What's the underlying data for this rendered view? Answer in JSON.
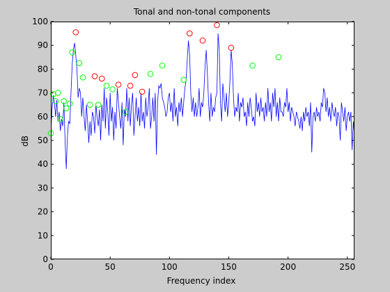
{
  "chart_data": {
    "type": "line",
    "title": "Tonal and non-tonal components",
    "xlabel": "Frequency index",
    "ylabel": "dB",
    "xlim": [
      0,
      256
    ],
    "ylim": [
      0,
      100
    ],
    "xticks": [
      0,
      50,
      100,
      150,
      200,
      250
    ],
    "yticks": [
      0,
      10,
      20,
      30,
      40,
      50,
      60,
      70,
      80,
      90,
      100
    ],
    "xtick_labels": [
      "0",
      "50",
      "100",
      "150",
      "200",
      "250"
    ],
    "ytick_labels": [
      "0",
      "10",
      "20",
      "30",
      "40",
      "50",
      "60",
      "70",
      "80",
      "90",
      "100"
    ],
    "grid": false,
    "colors": {
      "figure_background": "#cccccc",
      "axes_background": "#ffffff",
      "spectrum_line": "#0000ff",
      "tonal_marker": "#ff0000",
      "nontonal_marker": "#00ff00"
    },
    "series": [
      {
        "kind": "line",
        "x": [
          0,
          1,
          2,
          3,
          4,
          5,
          6,
          7,
          8,
          9,
          10,
          11,
          12,
          13,
          14,
          15,
          16,
          17,
          18,
          19,
          20,
          21,
          22,
          23,
          24,
          25,
          26,
          27,
          28,
          29,
          30,
          31,
          32,
          33,
          34,
          35,
          36,
          37,
          38,
          39,
          40,
          41,
          42,
          43,
          44,
          45,
          46,
          47,
          48,
          49,
          50,
          51,
          52,
          53,
          54,
          55,
          56,
          57,
          58,
          59,
          60,
          61,
          62,
          63,
          64,
          65,
          66,
          67,
          68,
          69,
          70,
          71,
          72,
          73,
          74,
          75,
          76,
          77,
          78,
          79,
          80,
          81,
          82,
          83,
          84,
          85,
          86,
          87,
          88,
          89,
          90,
          91,
          92,
          93,
          94,
          95,
          96,
          97,
          98,
          99,
          100,
          101,
          102,
          103,
          104,
          105,
          106,
          107,
          108,
          109,
          110,
          111,
          112,
          113,
          114,
          115,
          116,
          117,
          118,
          119,
          120,
          121,
          122,
          123,
          124,
          125,
          126,
          127,
          128,
          129,
          130,
          131,
          132,
          133,
          134,
          135,
          136,
          137,
          138,
          139,
          140,
          141,
          142,
          143,
          144,
          145,
          146,
          147,
          148,
          149,
          150,
          151,
          152,
          153,
          154,
          155,
          156,
          157,
          158,
          159,
          160,
          161,
          162,
          163,
          164,
          165,
          166,
          167,
          168,
          169,
          170,
          171,
          172,
          173,
          174,
          175,
          176,
          177,
          178,
          179,
          180,
          181,
          182,
          183,
          184,
          185,
          186,
          187,
          188,
          189,
          190,
          191,
          192,
          193,
          194,
          195,
          196,
          197,
          198,
          199,
          200,
          201,
          202,
          203,
          204,
          205,
          206,
          207,
          208,
          209,
          210,
          211,
          212,
          213,
          214,
          215,
          216,
          217,
          218,
          219,
          220,
          221,
          222,
          223,
          224,
          225,
          226,
          227,
          228,
          229,
          230,
          231,
          232,
          233,
          234,
          235,
          236,
          237,
          238,
          239,
          240,
          241,
          242,
          243,
          244,
          245,
          246,
          247,
          248,
          249,
          250,
          251,
          252,
          253,
          254,
          255,
          256
        ],
        "y": [
          53,
          63,
          69,
          66,
          60,
          67,
          58,
          62,
          54,
          59,
          56,
          66,
          50,
          38,
          52,
          58,
          57,
          70,
          82,
          88,
          91,
          86,
          80,
          68,
          72,
          70,
          60,
          68,
          60,
          54,
          65,
          58,
          49,
          58,
          52,
          62,
          60,
          53,
          65,
          60,
          56,
          63,
          50,
          65,
          58,
          72,
          55,
          68,
          62,
          52,
          70,
          58,
          64,
          50,
          62,
          55,
          72,
          66,
          60,
          55,
          66,
          48,
          63,
          60,
          72,
          58,
          68,
          56,
          65,
          70,
          52,
          60,
          68,
          58,
          64,
          56,
          70,
          58,
          62,
          55,
          68,
          60,
          64,
          72,
          55,
          60,
          68,
          58,
          70,
          44,
          66,
          73,
          72,
          74,
          68,
          66,
          64,
          60,
          62,
          68,
          70,
          62,
          66,
          58,
          72,
          60,
          64,
          56,
          66,
          62,
          68,
          60,
          66,
          72,
          75,
          84,
          92,
          86,
          70,
          62,
          68,
          60,
          66,
          60,
          64,
          72,
          60,
          66,
          64,
          70,
          81,
          88,
          78,
          66,
          58,
          70,
          60,
          64,
          62,
          68,
          70,
          95,
          88,
          66,
          58,
          74,
          68,
          62,
          70,
          60,
          66,
          75,
          88,
          82,
          68,
          60,
          64,
          62,
          70,
          58,
          66,
          64,
          68,
          60,
          62,
          56,
          66,
          60,
          68,
          64,
          58,
          60,
          56,
          70,
          62,
          66,
          60,
          68,
          62,
          64,
          58,
          66,
          60,
          72,
          62,
          66,
          58,
          70,
          64,
          72,
          60,
          66,
          58,
          68,
          62,
          62,
          60,
          66,
          64,
          72,
          62,
          66,
          58,
          64,
          62,
          60,
          56,
          62,
          60,
          58,
          55,
          60,
          54,
          62,
          58,
          64,
          60,
          62,
          56,
          66,
          45,
          60,
          62,
          58,
          64,
          60,
          62,
          58,
          66,
          64,
          72,
          70,
          62,
          68,
          60,
          64,
          58,
          66,
          62,
          60,
          64,
          56,
          62,
          60,
          50,
          66,
          62,
          58,
          64,
          54,
          60,
          62,
          58,
          62,
          46,
          58,
          52
        ]
      },
      {
        "kind": "markers",
        "name": "tonal",
        "x": [
          21,
          37,
          43,
          57,
          67,
          71,
          77,
          117,
          128,
          140,
          152
        ],
        "y": [
          95.5,
          77,
          76,
          73.5,
          73,
          77.5,
          70.5,
          95,
          92,
          98.5,
          89
        ]
      },
      {
        "kind": "markers",
        "name": "non-tonal",
        "x": [
          0,
          2,
          4,
          6,
          8,
          11,
          13,
          16,
          18,
          24,
          27,
          33,
          40,
          47,
          52,
          63,
          84,
          94,
          112,
          170,
          192
        ],
        "y": [
          53,
          69.5,
          66.5,
          70,
          59,
          66.5,
          63.5,
          65.5,
          87,
          82.5,
          76.5,
          65,
          65,
          73,
          71.5,
          62,
          78,
          81.5,
          75.5,
          81.5,
          85
        ]
      }
    ]
  }
}
